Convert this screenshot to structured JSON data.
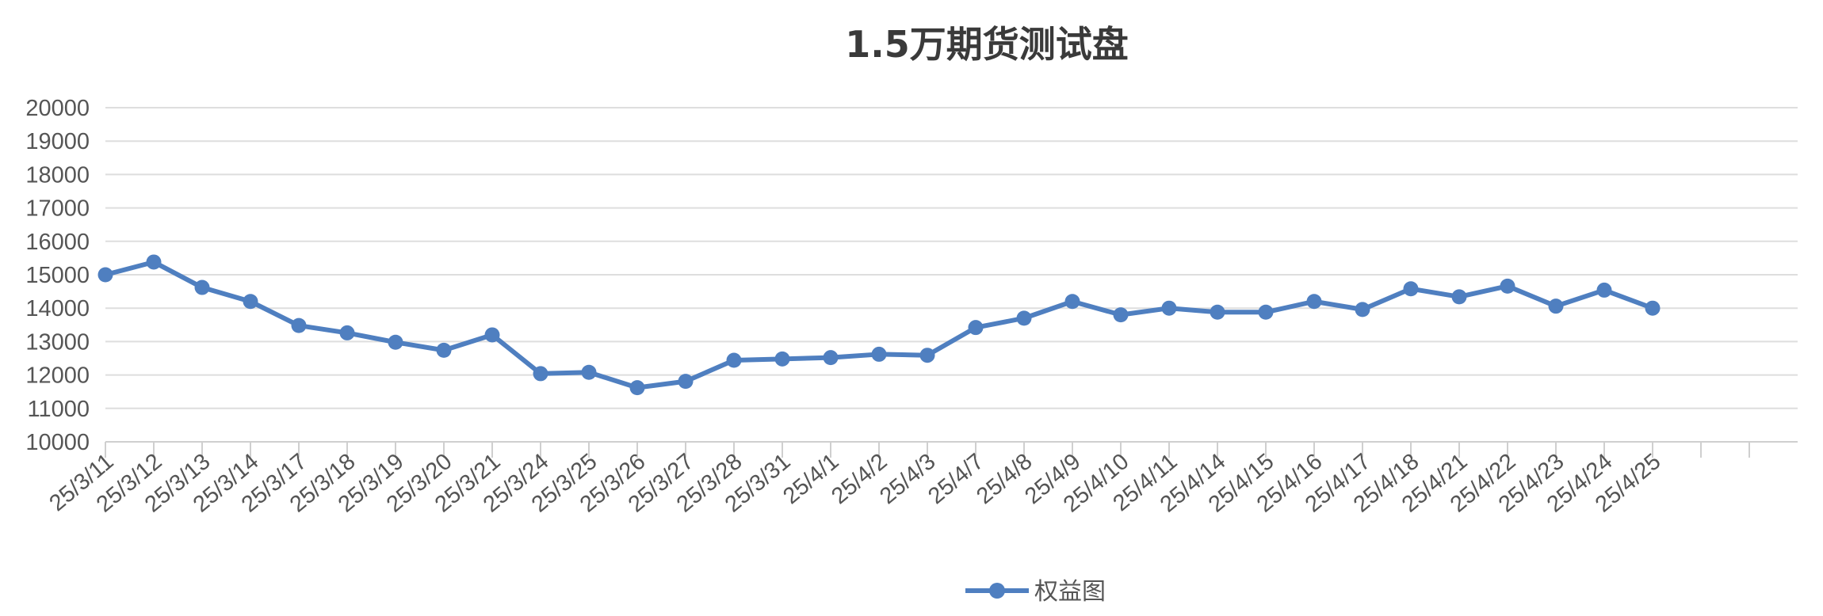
{
  "chart_data": {
    "type": "line",
    "title": "1.5万期货测试盘",
    "xlabel": "",
    "ylabel": "",
    "ylim": [
      10000,
      20000
    ],
    "yticks": [
      10000,
      11000,
      12000,
      13000,
      14000,
      15000,
      16000,
      17000,
      18000,
      19000,
      20000
    ],
    "grid": true,
    "legend_position": "bottom",
    "categories": [
      "25/3/11",
      "25/3/12",
      "25/3/13",
      "25/3/14",
      "25/3/17",
      "25/3/18",
      "25/3/19",
      "25/3/20",
      "25/3/21",
      "25/3/24",
      "25/3/25",
      "25/3/26",
      "25/3/27",
      "25/3/28",
      "25/3/31",
      "25/4/1",
      "25/4/2",
      "25/4/3",
      "25/4/7",
      "25/4/8",
      "25/4/9",
      "25/4/10",
      "25/4/11",
      "25/4/14",
      "25/4/15",
      "25/4/16",
      "25/4/17",
      "25/4/18",
      "25/4/21",
      "25/4/22",
      "25/4/23",
      "25/4/24",
      "25/4/25"
    ],
    "series": [
      {
        "name": "权益图",
        "color": "#4f7fc0",
        "values": [
          15000,
          15380,
          14620,
          14200,
          13480,
          13260,
          12980,
          12740,
          13200,
          12040,
          12080,
          11620,
          11810,
          12440,
          12480,
          12520,
          12620,
          12590,
          13420,
          13700,
          14200,
          13800,
          14000,
          13880,
          13880,
          14200,
          13960,
          14580,
          14340,
          14660,
          14060,
          14540,
          14000
        ]
      }
    ]
  }
}
